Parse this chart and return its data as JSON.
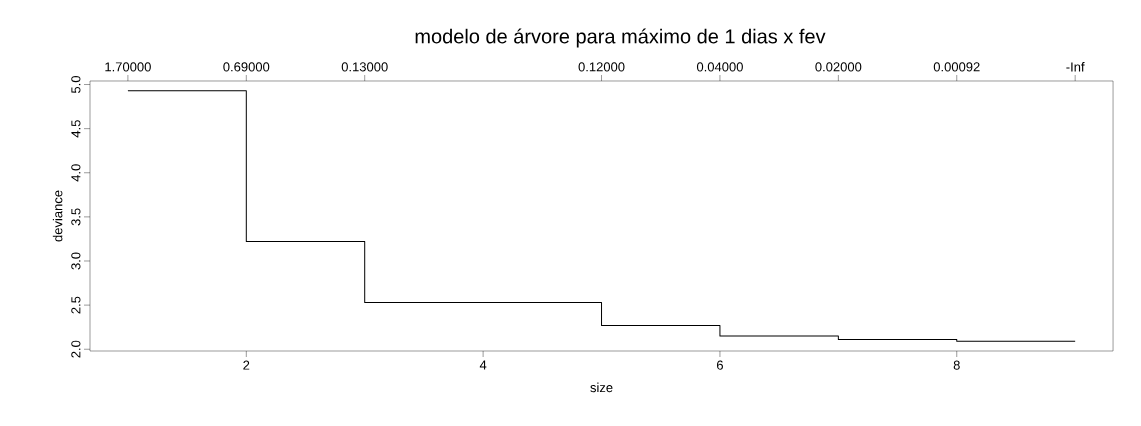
{
  "chart_data": {
    "type": "step",
    "title": "modelo de árvore para máximo de  1 dias x  fev",
    "xlabel": "size",
    "ylabel": "deviance",
    "x": [
      1,
      2,
      3,
      5,
      6,
      7,
      8,
      9
    ],
    "values": [
      4.93,
      3.22,
      2.53,
      2.27,
      2.15,
      2.11,
      2.09,
      2.09
    ],
    "color": "#000000",
    "xlim": [
      0.68,
      9.32
    ],
    "ylim": [
      1.98,
      5.04
    ],
    "xticks": [
      2,
      4,
      6,
      8
    ],
    "yticks": [
      {
        "value": 2,
        "label": "2.0"
      },
      {
        "value": 2.5,
        "label": "2.5"
      },
      {
        "value": 3,
        "label": "3.0"
      },
      {
        "value": 3.5,
        "label": "3.5"
      },
      {
        "value": 4,
        "label": "4.0"
      },
      {
        "value": 4.5,
        "label": "4.5"
      },
      {
        "value": 5,
        "label": "5.0"
      }
    ],
    "annotations": [
      "1.70000",
      "0.69000",
      "0.13000",
      "0.12000",
      "0.04000",
      "0.02000",
      "0.00092",
      "-Inf"
    ]
  }
}
